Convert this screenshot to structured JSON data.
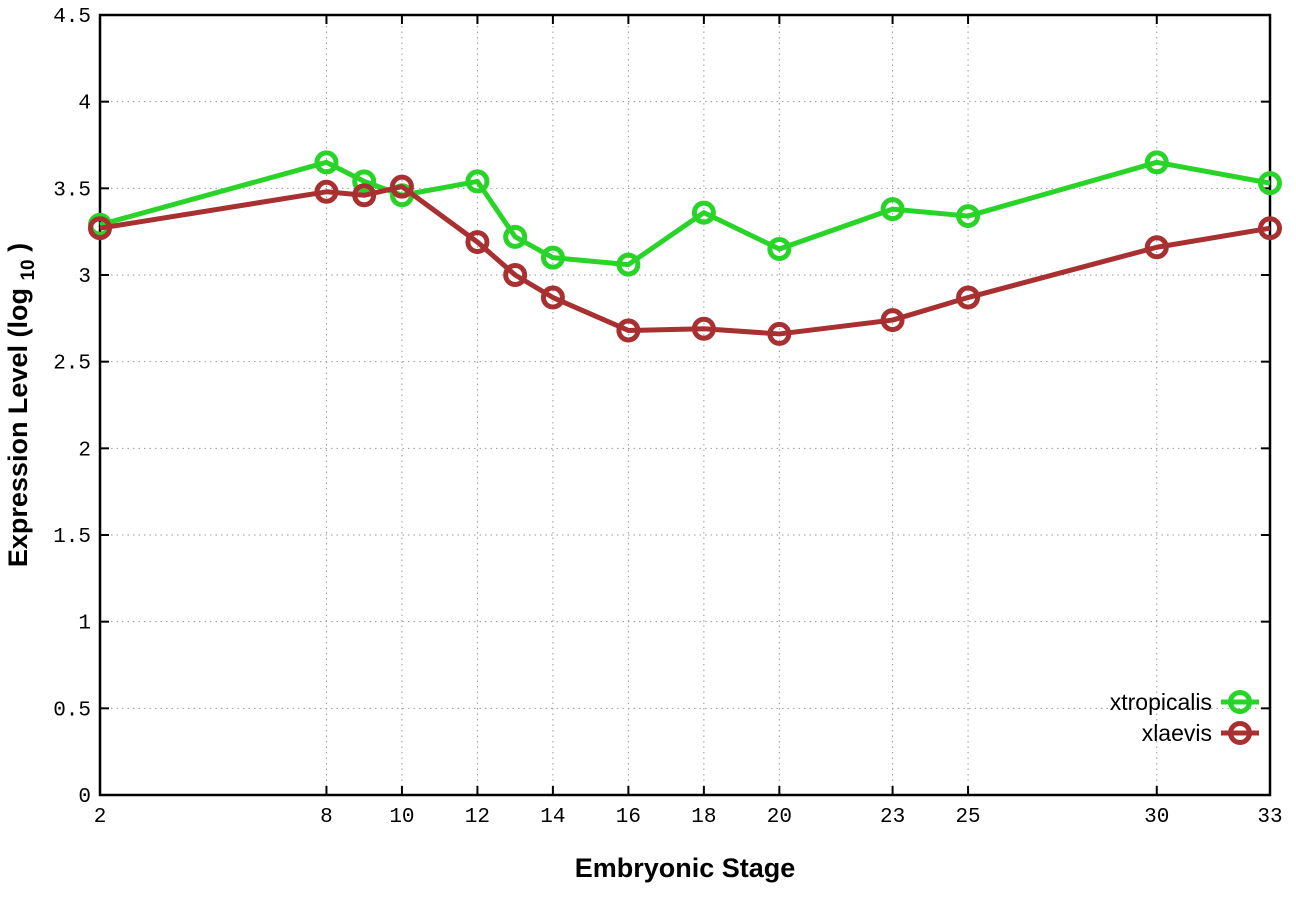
{
  "chart_data": {
    "type": "line",
    "title": "",
    "xlabel": "Embryonic Stage",
    "ylabel": "Expression Level (log10)",
    "ylabel_parts": {
      "pre": "Expression Level (log",
      "sub": "10",
      "post": ")"
    },
    "xlim": [
      2,
      33
    ],
    "ylim": [
      0,
      4.5
    ],
    "grid": true,
    "legend_position": "right-center-inside",
    "x": [
      2,
      8,
      9,
      10,
      12,
      13,
      14,
      16,
      18,
      20,
      23,
      25,
      30,
      33
    ],
    "xticks": [
      {
        "v": 2,
        "label": "2"
      },
      {
        "v": 8,
        "label": "8"
      },
      {
        "v": 10,
        "label": "10"
      },
      {
        "v": 12,
        "label": "12"
      },
      {
        "v": 14,
        "label": "14"
      },
      {
        "v": 16,
        "label": "16"
      },
      {
        "v": 18,
        "label": "18"
      },
      {
        "v": 20,
        "label": "20"
      },
      {
        "v": 23,
        "label": "23"
      },
      {
        "v": 25,
        "label": "25"
      },
      {
        "v": 30,
        "label": "30"
      },
      {
        "v": 33,
        "label": "33"
      }
    ],
    "yticks": [
      {
        "v": 0,
        "label": "0"
      },
      {
        "v": 0.5,
        "label": "0.5"
      },
      {
        "v": 1,
        "label": "1"
      },
      {
        "v": 1.5,
        "label": "1.5"
      },
      {
        "v": 2,
        "label": "2"
      },
      {
        "v": 2.5,
        "label": "2.5"
      },
      {
        "v": 3,
        "label": "3"
      },
      {
        "v": 3.5,
        "label": "3.5"
      },
      {
        "v": 4,
        "label": "4"
      },
      {
        "v": 4.5,
        "label": "4.5"
      }
    ],
    "series": [
      {
        "name": "xtropicalis",
        "color": "#28d428",
        "values": [
          3.29,
          3.65,
          3.54,
          3.46,
          3.54,
          3.22,
          3.1,
          3.06,
          3.36,
          3.15,
          3.38,
          3.34,
          3.65,
          3.53
        ]
      },
      {
        "name": "xlaevis",
        "color": "#a93030",
        "values": [
          3.27,
          3.48,
          3.46,
          3.51,
          3.19,
          3.0,
          2.87,
          2.68,
          2.69,
          2.66,
          2.74,
          2.87,
          3.16,
          3.27
        ]
      }
    ],
    "colors": {
      "grid": "#9a9a9a",
      "axis": "#000000",
      "background": "#ffffff"
    }
  }
}
